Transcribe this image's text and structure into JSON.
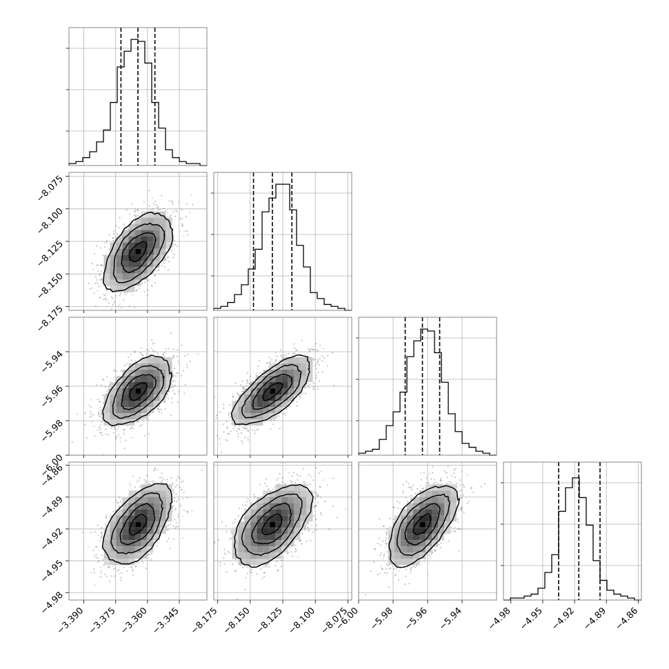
{
  "chart_data": {
    "type": "corner",
    "title": "",
    "grid": true,
    "legend": "none",
    "colors": {
      "ink": "#000000",
      "grid": "#b0b0b0",
      "frame": "#666666"
    },
    "quantiles_shown": [
      0.16,
      0.5,
      0.84
    ],
    "params": [
      {
        "range": [
          -3.397,
          -3.332
        ],
        "ticks": [
          {
            "v": -3.39,
            "t": "−3.390"
          },
          {
            "v": -3.375,
            "t": "−3.375"
          },
          {
            "v": -3.36,
            "t": "−3.360"
          },
          {
            "v": -3.345,
            "t": "−3.345"
          }
        ],
        "quantiles": [
          -3.3725,
          -3.3645,
          -3.3565
        ],
        "hist": [
          1,
          2,
          4,
          7,
          12,
          18,
          32,
          50,
          58,
          64,
          63,
          52,
          32,
          19,
          8,
          4,
          2,
          1,
          1,
          0
        ],
        "hist_ymax": 70
      },
      {
        "range": [
          -8.178,
          -8.072
        ],
        "ticks": [
          {
            "v": -8.075,
            "t": "−8.075"
          },
          {
            "v": -8.1,
            "t": "−8.100"
          },
          {
            "v": -8.125,
            "t": "−8.125"
          },
          {
            "v": -8.15,
            "t": "−8.150"
          },
          {
            "v": -8.175,
            "t": "−8.175"
          }
        ],
        "xticks": [
          {
            "v": -8.175,
            "t": "−8.175"
          },
          {
            "v": -8.15,
            "t": "−8.150"
          },
          {
            "v": -8.125,
            "t": "−8.125"
          },
          {
            "v": -8.1,
            "t": "−8.100"
          },
          {
            "v": -8.075,
            "t": "−8.075"
          }
        ],
        "quantiles": [
          -8.1475,
          -8.133,
          -8.118
        ],
        "hist": [
          1,
          2,
          4,
          8,
          13,
          21,
          31,
          50,
          57,
          64,
          64,
          51,
          33,
          22,
          9,
          6,
          3,
          2,
          1,
          0
        ],
        "hist_ymax": 70
      },
      {
        "range": [
          -6.0,
          -5.92
        ],
        "ticks": [
          {
            "v": -6.0,
            "t": "−6.00"
          },
          {
            "v": -5.98,
            "t": "−5.98"
          },
          {
            "v": -5.96,
            "t": "−5.96"
          },
          {
            "v": -5.94,
            "t": "−5.94"
          }
        ],
        "quantiles": [
          -5.973,
          -5.963,
          -5.953
        ],
        "hist": [
          1,
          2,
          3,
          8,
          15,
          22,
          32,
          50,
          58,
          64,
          63,
          52,
          37,
          21,
          12,
          6,
          4,
          2,
          1,
          0
        ],
        "hist_ymax": 70
      },
      {
        "range": [
          -4.987,
          -4.857
        ],
        "ticks": [
          {
            "v": -4.98,
            "t": "−4.98"
          },
          {
            "v": -4.95,
            "t": "−4.95"
          },
          {
            "v": -4.92,
            "t": "−4.92"
          },
          {
            "v": -4.89,
            "t": "−4.89"
          },
          {
            "v": -4.86,
            "t": "−4.86"
          }
        ],
        "quantiles": [
          -4.935,
          -4.916,
          -4.896
        ],
        "hist": [
          0,
          1,
          1,
          2,
          3,
          6,
          14,
          23,
          45,
          57,
          62,
          52,
          38,
          20,
          10,
          5,
          3,
          2,
          1,
          0
        ],
        "hist_ymax": 70
      }
    ],
    "pairs": [
      {
        "x": 0,
        "y": 1,
        "mean": [
          -3.3645,
          -8.133
        ],
        "sd": [
          0.008,
          0.015
        ],
        "rho": 0.55
      },
      {
        "x": 0,
        "y": 2,
        "mean": [
          -3.3645,
          -5.963
        ],
        "sd": [
          0.008,
          0.01
        ],
        "rho": 0.55
      },
      {
        "x": 1,
        "y": 2,
        "mean": [
          -8.133,
          -5.963
        ],
        "sd": [
          0.015,
          0.01
        ],
        "rho": 0.7
      },
      {
        "x": 0,
        "y": 3,
        "mean": [
          -3.3645,
          -4.916
        ],
        "sd": [
          0.008,
          0.019
        ],
        "rho": 0.55
      },
      {
        "x": 1,
        "y": 3,
        "mean": [
          -8.133,
          -4.916
        ],
        "sd": [
          0.015,
          0.019
        ],
        "rho": 0.55
      },
      {
        "x": 2,
        "y": 3,
        "mean": [
          -5.963,
          -4.916
        ],
        "sd": [
          0.01,
          0.019
        ],
        "rho": 0.6
      }
    ],
    "contour_levels_sigma": [
      0.5,
      1.0,
      1.5,
      2.0
    ]
  }
}
